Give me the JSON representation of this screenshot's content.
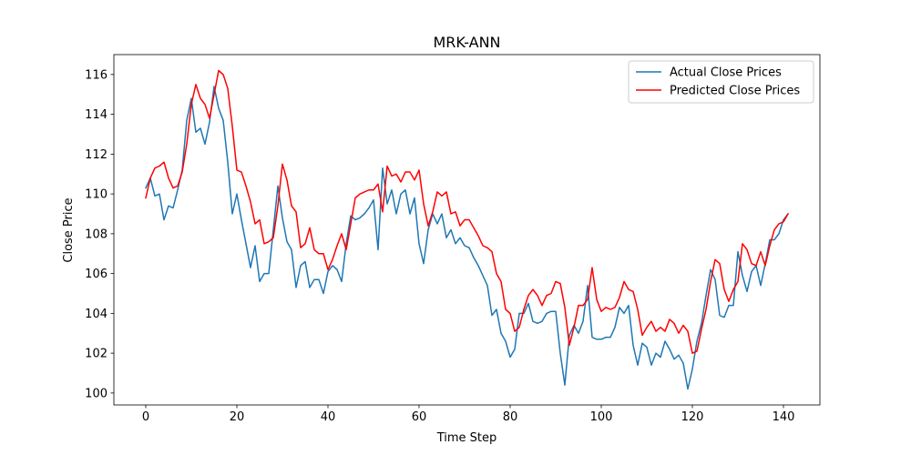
{
  "chart_data": {
    "type": "line",
    "title": "MRK-ANN",
    "xlabel": "Time Step",
    "ylabel": "Close Price",
    "xlim": [
      -7,
      148
    ],
    "ylim": [
      99.4,
      117.0
    ],
    "xticks": [
      0,
      20,
      40,
      60,
      80,
      100,
      120,
      140
    ],
    "yticks": [
      100,
      102,
      104,
      106,
      108,
      110,
      112,
      114,
      116
    ],
    "grid": false,
    "legend_position": "upper right",
    "series": [
      {
        "name": "Actual Close Prices",
        "color": "#1f77b4",
        "x_start": 0,
        "values": [
          110.3,
          110.8,
          109.9,
          110.0,
          108.7,
          109.4,
          109.3,
          110.2,
          111.2,
          113.7,
          114.8,
          113.1,
          113.3,
          112.5,
          113.6,
          115.4,
          114.3,
          113.7,
          111.6,
          109.0,
          110.0,
          108.7,
          107.5,
          106.3,
          107.4,
          105.6,
          106.0,
          106.0,
          108.2,
          110.4,
          108.8,
          107.6,
          107.2,
          105.3,
          106.4,
          106.6,
          105.3,
          105.7,
          105.7,
          105.0,
          106.1,
          106.4,
          106.2,
          105.6,
          107.5,
          108.9,
          108.7,
          108.8,
          109.0,
          109.3,
          109.7,
          107.2,
          111.3,
          109.5,
          110.2,
          109.0,
          110.0,
          110.2,
          109.0,
          109.8,
          107.5,
          106.5,
          108.2,
          109.0,
          108.5,
          109.0,
          107.8,
          108.2,
          107.5,
          107.8,
          107.4,
          107.3,
          106.8,
          106.4,
          105.9,
          105.4,
          103.9,
          104.2,
          103.0,
          102.6,
          101.8,
          102.2,
          104.0,
          104.0,
          104.5,
          103.6,
          103.5,
          103.6,
          104.0,
          104.1,
          104.1,
          102.0,
          100.4,
          102.9,
          103.4,
          103.0,
          103.6,
          105.4,
          102.8,
          102.7,
          102.7,
          102.8,
          102.8,
          103.3,
          104.3,
          104.0,
          104.4,
          102.4,
          101.4,
          102.5,
          102.3,
          101.4,
          102.0,
          101.8,
          102.6,
          102.2,
          101.7,
          101.9,
          101.5,
          100.2,
          101.2,
          102.6,
          103.5,
          104.9,
          106.2,
          105.7,
          103.9,
          103.8,
          104.4,
          104.4,
          107.1,
          105.9,
          105.1,
          106.1,
          106.4,
          105.4,
          106.5,
          107.7,
          107.7,
          108.0,
          108.7,
          109.0
        ]
      },
      {
        "name": "Predicted Close Prices",
        "color": "#ff0000",
        "x_start": 0,
        "values": [
          109.8,
          110.8,
          111.3,
          111.4,
          111.6,
          110.8,
          110.3,
          110.4,
          111.1,
          112.5,
          114.5,
          115.5,
          114.8,
          114.5,
          113.8,
          115.0,
          116.2,
          116.0,
          115.3,
          113.4,
          111.2,
          111.1,
          110.4,
          109.6,
          108.5,
          108.7,
          107.5,
          107.6,
          107.8,
          109.4,
          111.5,
          110.7,
          109.4,
          109.1,
          107.3,
          107.5,
          108.3,
          107.2,
          107.0,
          107.0,
          106.2,
          106.7,
          107.4,
          108.0,
          107.2,
          108.5,
          109.8,
          110.0,
          110.1,
          110.2,
          110.2,
          110.5,
          109.1,
          111.4,
          110.9,
          111.0,
          110.6,
          111.1,
          111.1,
          110.7,
          111.2,
          109.5,
          108.4,
          109.1,
          110.1,
          109.9,
          110.1,
          109.0,
          109.1,
          108.4,
          108.7,
          108.7,
          108.3,
          107.9,
          107.4,
          107.3,
          107.1,
          106.0,
          105.6,
          104.2,
          104.0,
          103.1,
          103.3,
          104.2,
          104.9,
          105.2,
          104.9,
          104.4,
          104.9,
          105.0,
          105.6,
          105.5,
          104.3,
          102.4,
          103.3,
          104.4,
          104.4,
          104.7,
          106.3,
          104.7,
          104.1,
          104.3,
          104.2,
          104.3,
          104.8,
          105.6,
          105.2,
          105.1,
          104.2,
          102.9,
          103.3,
          103.6,
          103.1,
          103.3,
          103.1,
          103.7,
          103.5,
          103.0,
          103.4,
          103.1,
          102.0,
          102.1,
          103.2,
          104.2,
          105.6,
          106.7,
          106.5,
          105.2,
          104.6,
          105.2,
          105.6,
          107.5,
          107.2,
          106.5,
          106.4,
          107.1,
          106.4,
          107.4,
          108.2,
          108.5,
          108.6,
          109.0
        ]
      }
    ]
  }
}
